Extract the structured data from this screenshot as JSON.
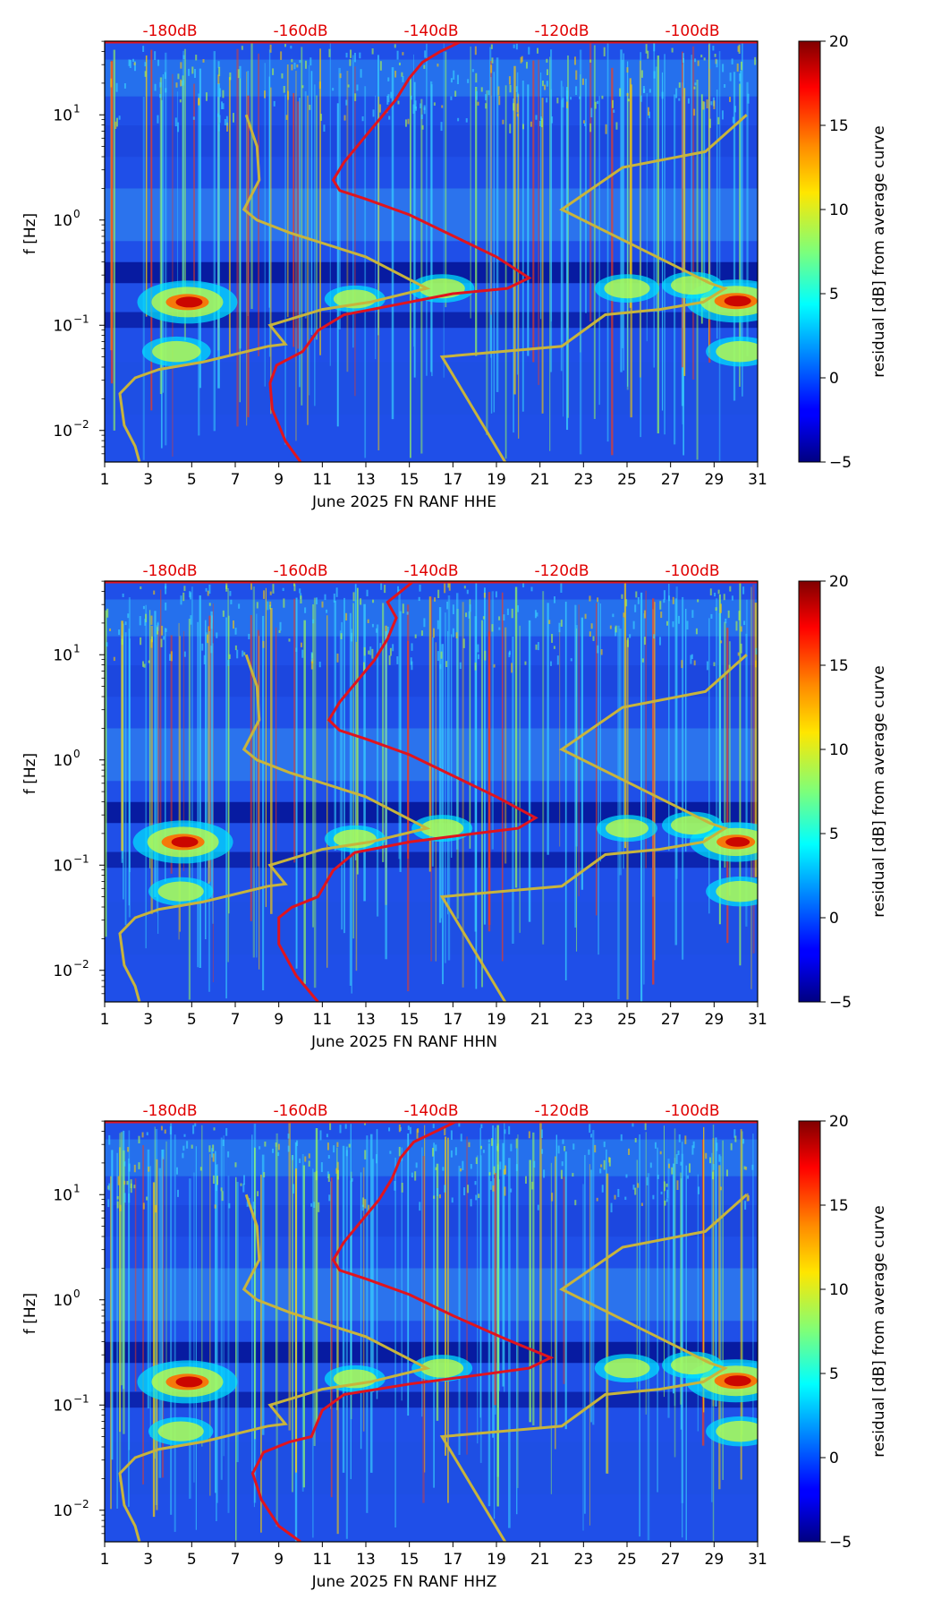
{
  "colors": {
    "ref_curve": "#e0141e",
    "noise_model": "#c8b43c",
    "db_axis": "#e00000"
  },
  "chart_data": [
    {
      "type": "heatmap",
      "channel": "HHE",
      "xlabel": "June 2025 FN RANF  HHE",
      "ylabel": "f [Hz]",
      "xlim": [
        1,
        31
      ],
      "ylim_log10": [
        -2.3,
        1.7
      ],
      "x_ticks": [
        1,
        3,
        5,
        7,
        9,
        11,
        13,
        15,
        17,
        19,
        21,
        23,
        25,
        27,
        29,
        31
      ],
      "y_ticks": [
        {
          "log10": -2,
          "label": "10",
          "exp": "−2"
        },
        {
          "log10": -1,
          "label": "10",
          "exp": "−1"
        },
        {
          "log10": 0,
          "label": "10",
          "exp": "0"
        },
        {
          "log10": 1,
          "label": "10",
          "exp": "1"
        }
      ],
      "db_ticks": [
        {
          "day": 4,
          "label": "-180dB"
        },
        {
          "day": 10,
          "label": "-160dB"
        },
        {
          "day": 16,
          "label": "-140dB"
        },
        {
          "day": 22,
          "label": "-120dB"
        },
        {
          "day": 28,
          "label": "-100dB"
        }
      ],
      "colorbar": {
        "label": "residual [dB] from average curve",
        "range": [
          -5,
          20
        ],
        "ticks": [
          20,
          15,
          10,
          5,
          0,
          -5
        ],
        "tick_labels": [
          "20",
          "15",
          "10",
          "5",
          "0",
          "−5"
        ]
      },
      "hot_spots": [
        {
          "day": 4.8,
          "log10f": -0.78,
          "strength": 1.0
        },
        {
          "day": 30.0,
          "log10f": -0.77,
          "strength": 1.0
        },
        {
          "day": 4.3,
          "log10f": -1.25,
          "strength": 0.6
        },
        {
          "day": 30.2,
          "log10f": -1.25,
          "strength": 0.6
        },
        {
          "day": 12.5,
          "log10f": -0.75,
          "strength": 0.5
        },
        {
          "day": 16.5,
          "log10f": -0.65,
          "strength": 0.55
        },
        {
          "day": 25.0,
          "log10f": -0.65,
          "strength": 0.55
        },
        {
          "day": 28.0,
          "log10f": -0.62,
          "strength": 0.5
        }
      ],
      "ref_curve": [
        {
          "day": 10.0,
          "log10f": -2.3
        },
        {
          "day": 9.3,
          "log10f": -2.1
        },
        {
          "day": 8.7,
          "log10f": -1.8
        },
        {
          "day": 8.6,
          "log10f": -1.55
        },
        {
          "day": 8.9,
          "log10f": -1.38
        },
        {
          "day": 10.1,
          "log10f": -1.25
        },
        {
          "day": 10.8,
          "log10f": -1.05
        },
        {
          "day": 12.0,
          "log10f": -0.9
        },
        {
          "day": 14.5,
          "log10f": -0.8
        },
        {
          "day": 17.0,
          "log10f": -0.7
        },
        {
          "day": 19.5,
          "log10f": -0.65
        },
        {
          "day": 20.5,
          "log10f": -0.55
        },
        {
          "day": 19.0,
          "log10f": -0.35
        },
        {
          "day": 17.0,
          "log10f": -0.15
        },
        {
          "day": 15.0,
          "log10f": 0.05
        },
        {
          "day": 13.0,
          "log10f": 0.2
        },
        {
          "day": 11.8,
          "log10f": 0.28
        },
        {
          "day": 11.5,
          "log10f": 0.38
        },
        {
          "day": 12.0,
          "log10f": 0.55
        },
        {
          "day": 12.8,
          "log10f": 0.75
        },
        {
          "day": 13.6,
          "log10f": 0.95
        },
        {
          "day": 14.4,
          "log10f": 1.15
        },
        {
          "day": 15.0,
          "log10f": 1.35
        },
        {
          "day": 15.6,
          "log10f": 1.5
        },
        {
          "day": 16.4,
          "log10f": 1.6
        },
        {
          "day": 17.4,
          "log10f": 1.7
        }
      ],
      "noise_low": [
        {
          "day": 2.6,
          "log10f": -2.3
        },
        {
          "day": 2.4,
          "log10f": -2.15
        },
        {
          "day": 1.9,
          "log10f": -1.95
        },
        {
          "day": 1.7,
          "log10f": -1.65
        },
        {
          "day": 2.4,
          "log10f": -1.5
        },
        {
          "day": 3.5,
          "log10f": -1.42
        },
        {
          "day": 5.5,
          "log10f": -1.35
        },
        {
          "day": 8.5,
          "log10f": -1.2
        },
        {
          "day": 9.3,
          "log10f": -1.18
        },
        {
          "day": 8.6,
          "log10f": -1.0
        },
        {
          "day": 11.0,
          "log10f": -0.85
        },
        {
          "day": 13.2,
          "log10f": -0.78
        },
        {
          "day": 15.8,
          "log10f": -0.65
        },
        {
          "day": 13.0,
          "log10f": -0.35
        },
        {
          "day": 9.5,
          "log10f": -0.12
        },
        {
          "day": 8.0,
          "log10f": 0.0
        },
        {
          "day": 7.4,
          "log10f": 0.1
        },
        {
          "day": 8.1,
          "log10f": 0.38
        },
        {
          "day": 8.0,
          "log10f": 0.7
        },
        {
          "day": 7.5,
          "log10f": 1.0
        }
      ],
      "noise_high": [
        {
          "day": 19.4,
          "log10f": -2.3
        },
        {
          "day": 16.5,
          "log10f": -1.3
        },
        {
          "day": 22.0,
          "log10f": -1.2
        },
        {
          "day": 24.0,
          "log10f": -0.9
        },
        {
          "day": 26.5,
          "log10f": -0.85
        },
        {
          "day": 28.5,
          "log10f": -0.78
        },
        {
          "day": 29.5,
          "log10f": -0.65
        },
        {
          "day": 28.8,
          "log10f": -0.6
        },
        {
          "day": 22.0,
          "log10f": 0.1
        },
        {
          "day": 24.8,
          "log10f": 0.5
        },
        {
          "day": 28.6,
          "log10f": 0.65
        },
        {
          "day": 30.5,
          "log10f": 1.0
        }
      ]
    },
    {
      "type": "heatmap",
      "channel": "HHN",
      "xlabel": "June 2025 FN RANF  HHN",
      "ylabel": "f [Hz]",
      "xlim": [
        1,
        31
      ],
      "ylim_log10": [
        -2.3,
        1.7
      ],
      "x_ticks": [
        1,
        3,
        5,
        7,
        9,
        11,
        13,
        15,
        17,
        19,
        21,
        23,
        25,
        27,
        29,
        31
      ],
      "y_ticks": [
        {
          "log10": -2,
          "label": "10",
          "exp": "−2"
        },
        {
          "log10": -1,
          "label": "10",
          "exp": "−1"
        },
        {
          "log10": 0,
          "label": "10",
          "exp": "0"
        },
        {
          "log10": 1,
          "label": "10",
          "exp": "1"
        }
      ],
      "db_ticks": [
        {
          "day": 4,
          "label": "-180dB"
        },
        {
          "day": 10,
          "label": "-160dB"
        },
        {
          "day": 16,
          "label": "-140dB"
        },
        {
          "day": 22,
          "label": "-120dB"
        },
        {
          "day": 28,
          "label": "-100dB"
        }
      ],
      "colorbar": {
        "label": "residual [dB] from average curve",
        "range": [
          -5,
          20
        ],
        "ticks": [
          20,
          15,
          10,
          5,
          0,
          -5
        ],
        "tick_labels": [
          "20",
          "15",
          "10",
          "5",
          "0",
          "−5"
        ]
      },
      "hot_spots": [
        {
          "day": 4.6,
          "log10f": -0.78,
          "strength": 1.0
        },
        {
          "day": 30.0,
          "log10f": -0.78,
          "strength": 0.9
        },
        {
          "day": 4.5,
          "log10f": -1.25,
          "strength": 0.55
        },
        {
          "day": 30.2,
          "log10f": -1.25,
          "strength": 0.6
        },
        {
          "day": 12.5,
          "log10f": -0.75,
          "strength": 0.5
        },
        {
          "day": 16.5,
          "log10f": -0.65,
          "strength": 0.5
        },
        {
          "day": 25.0,
          "log10f": -0.65,
          "strength": 0.5
        },
        {
          "day": 28.0,
          "log10f": -0.62,
          "strength": 0.5
        }
      ],
      "ref_curve": [
        {
          "day": 10.8,
          "log10f": -2.3
        },
        {
          "day": 9.8,
          "log10f": -2.05
        },
        {
          "day": 9.0,
          "log10f": -1.75
        },
        {
          "day": 9.0,
          "log10f": -1.5
        },
        {
          "day": 9.6,
          "log10f": -1.4
        },
        {
          "day": 10.8,
          "log10f": -1.3
        },
        {
          "day": 11.5,
          "log10f": -1.05
        },
        {
          "day": 12.5,
          "log10f": -0.88
        },
        {
          "day": 15.0,
          "log10f": -0.78
        },
        {
          "day": 18.0,
          "log10f": -0.7
        },
        {
          "day": 20.0,
          "log10f": -0.65
        },
        {
          "day": 20.8,
          "log10f": -0.55
        },
        {
          "day": 19.0,
          "log10f": -0.35
        },
        {
          "day": 17.0,
          "log10f": -0.15
        },
        {
          "day": 15.0,
          "log10f": 0.05
        },
        {
          "day": 13.0,
          "log10f": 0.2
        },
        {
          "day": 11.8,
          "log10f": 0.28
        },
        {
          "day": 11.3,
          "log10f": 0.38
        },
        {
          "day": 11.8,
          "log10f": 0.55
        },
        {
          "day": 12.6,
          "log10f": 0.75
        },
        {
          "day": 13.4,
          "log10f": 0.95
        },
        {
          "day": 14.0,
          "log10f": 1.15
        },
        {
          "day": 14.4,
          "log10f": 1.35
        },
        {
          "day": 14.0,
          "log10f": 1.5
        },
        {
          "day": 14.6,
          "log10f": 1.6
        },
        {
          "day": 15.2,
          "log10f": 1.7
        }
      ],
      "noise_low": [
        {
          "day": 2.6,
          "log10f": -2.3
        },
        {
          "day": 2.4,
          "log10f": -2.15
        },
        {
          "day": 1.9,
          "log10f": -1.95
        },
        {
          "day": 1.7,
          "log10f": -1.65
        },
        {
          "day": 2.4,
          "log10f": -1.5
        },
        {
          "day": 3.5,
          "log10f": -1.42
        },
        {
          "day": 5.5,
          "log10f": -1.35
        },
        {
          "day": 8.5,
          "log10f": -1.2
        },
        {
          "day": 9.3,
          "log10f": -1.18
        },
        {
          "day": 8.6,
          "log10f": -1.0
        },
        {
          "day": 11.0,
          "log10f": -0.85
        },
        {
          "day": 13.2,
          "log10f": -0.78
        },
        {
          "day": 15.8,
          "log10f": -0.65
        },
        {
          "day": 13.0,
          "log10f": -0.35
        },
        {
          "day": 9.5,
          "log10f": -0.12
        },
        {
          "day": 8.0,
          "log10f": 0.0
        },
        {
          "day": 7.4,
          "log10f": 0.1
        },
        {
          "day": 8.1,
          "log10f": 0.38
        },
        {
          "day": 8.0,
          "log10f": 0.7
        },
        {
          "day": 7.5,
          "log10f": 1.0
        }
      ],
      "noise_high": [
        {
          "day": 19.4,
          "log10f": -2.3
        },
        {
          "day": 16.5,
          "log10f": -1.3
        },
        {
          "day": 22.0,
          "log10f": -1.2
        },
        {
          "day": 24.0,
          "log10f": -0.9
        },
        {
          "day": 26.5,
          "log10f": -0.85
        },
        {
          "day": 28.5,
          "log10f": -0.78
        },
        {
          "day": 29.5,
          "log10f": -0.65
        },
        {
          "day": 28.8,
          "log10f": -0.6
        },
        {
          "day": 22.0,
          "log10f": 0.1
        },
        {
          "day": 24.8,
          "log10f": 0.5
        },
        {
          "day": 28.6,
          "log10f": 0.65
        },
        {
          "day": 30.5,
          "log10f": 1.0
        }
      ]
    },
    {
      "type": "heatmap",
      "channel": "HHZ",
      "xlabel": "June 2025 FN RANF  HHZ",
      "ylabel": "f [Hz]",
      "xlim": [
        1,
        31
      ],
      "ylim_log10": [
        -2.3,
        1.7
      ],
      "x_ticks": [
        1,
        3,
        5,
        7,
        9,
        11,
        13,
        15,
        17,
        19,
        21,
        23,
        25,
        27,
        29,
        31
      ],
      "y_ticks": [
        {
          "log10": -2,
          "label": "10",
          "exp": "−2"
        },
        {
          "log10": -1,
          "label": "10",
          "exp": "−1"
        },
        {
          "log10": 0,
          "label": "10",
          "exp": "0"
        },
        {
          "log10": 1,
          "label": "10",
          "exp": "1"
        }
      ],
      "db_ticks": [
        {
          "day": 4,
          "label": "-180dB"
        },
        {
          "day": 10,
          "label": "-160dB"
        },
        {
          "day": 16,
          "label": "-140dB"
        },
        {
          "day": 22,
          "label": "-120dB"
        },
        {
          "day": 28,
          "label": "-100dB"
        }
      ],
      "colorbar": {
        "label": "residual [dB] from average curve",
        "range": [
          -5,
          20
        ],
        "ticks": [
          20,
          15,
          10,
          5,
          0,
          -5
        ],
        "tick_labels": [
          "20",
          "15",
          "10",
          "5",
          "0",
          "−5"
        ]
      },
      "hot_spots": [
        {
          "day": 4.8,
          "log10f": -0.78,
          "strength": 1.0
        },
        {
          "day": 30.0,
          "log10f": -0.77,
          "strength": 1.0
        },
        {
          "day": 4.5,
          "log10f": -1.25,
          "strength": 0.55
        },
        {
          "day": 30.2,
          "log10f": -1.25,
          "strength": 0.6
        },
        {
          "day": 12.5,
          "log10f": -0.75,
          "strength": 0.5
        },
        {
          "day": 16.5,
          "log10f": -0.65,
          "strength": 0.5
        },
        {
          "day": 25.0,
          "log10f": -0.65,
          "strength": 0.55
        },
        {
          "day": 28.0,
          "log10f": -0.62,
          "strength": 0.5
        }
      ],
      "ref_curve": [
        {
          "day": 10.0,
          "log10f": -2.3
        },
        {
          "day": 9.0,
          "log10f": -2.15
        },
        {
          "day": 8.2,
          "log10f": -1.9
        },
        {
          "day": 7.8,
          "log10f": -1.65
        },
        {
          "day": 8.3,
          "log10f": -1.45
        },
        {
          "day": 9.5,
          "log10f": -1.35
        },
        {
          "day": 10.5,
          "log10f": -1.3
        },
        {
          "day": 11.0,
          "log10f": -1.05
        },
        {
          "day": 12.0,
          "log10f": -0.9
        },
        {
          "day": 15.0,
          "log10f": -0.8
        },
        {
          "day": 18.0,
          "log10f": -0.72
        },
        {
          "day": 20.5,
          "log10f": -0.65
        },
        {
          "day": 21.5,
          "log10f": -0.55
        },
        {
          "day": 19.5,
          "log10f": -0.38
        },
        {
          "day": 17.0,
          "log10f": -0.15
        },
        {
          "day": 15.0,
          "log10f": 0.05
        },
        {
          "day": 13.0,
          "log10f": 0.2
        },
        {
          "day": 11.8,
          "log10f": 0.28
        },
        {
          "day": 11.5,
          "log10f": 0.38
        },
        {
          "day": 12.0,
          "log10f": 0.55
        },
        {
          "day": 12.8,
          "log10f": 0.75
        },
        {
          "day": 13.6,
          "log10f": 0.95
        },
        {
          "day": 14.2,
          "log10f": 1.15
        },
        {
          "day": 14.6,
          "log10f": 1.35
        },
        {
          "day": 15.2,
          "log10f": 1.5
        },
        {
          "day": 16.2,
          "log10f": 1.6
        },
        {
          "day": 17.2,
          "log10f": 1.7
        }
      ],
      "noise_low": [
        {
          "day": 2.6,
          "log10f": -2.3
        },
        {
          "day": 2.4,
          "log10f": -2.15
        },
        {
          "day": 1.9,
          "log10f": -1.95
        },
        {
          "day": 1.7,
          "log10f": -1.65
        },
        {
          "day": 2.4,
          "log10f": -1.5
        },
        {
          "day": 3.5,
          "log10f": -1.42
        },
        {
          "day": 5.5,
          "log10f": -1.35
        },
        {
          "day": 8.5,
          "log10f": -1.2
        },
        {
          "day": 9.3,
          "log10f": -1.18
        },
        {
          "day": 8.6,
          "log10f": -1.0
        },
        {
          "day": 11.0,
          "log10f": -0.85
        },
        {
          "day": 13.2,
          "log10f": -0.78
        },
        {
          "day": 15.8,
          "log10f": -0.65
        },
        {
          "day": 13.0,
          "log10f": -0.35
        },
        {
          "day": 9.5,
          "log10f": -0.12
        },
        {
          "day": 8.0,
          "log10f": 0.0
        },
        {
          "day": 7.4,
          "log10f": 0.1
        },
        {
          "day": 8.1,
          "log10f": 0.38
        },
        {
          "day": 8.0,
          "log10f": 0.7
        },
        {
          "day": 7.5,
          "log10f": 1.0
        }
      ],
      "noise_high": [
        {
          "day": 19.4,
          "log10f": -2.3
        },
        {
          "day": 16.5,
          "log10f": -1.3
        },
        {
          "day": 22.0,
          "log10f": -1.2
        },
        {
          "day": 24.0,
          "log10f": -0.9
        },
        {
          "day": 26.5,
          "log10f": -0.85
        },
        {
          "day": 28.5,
          "log10f": -0.78
        },
        {
          "day": 29.5,
          "log10f": -0.65
        },
        {
          "day": 28.8,
          "log10f": -0.6
        },
        {
          "day": 22.0,
          "log10f": 0.1
        },
        {
          "day": 24.8,
          "log10f": 0.5
        },
        {
          "day": 28.6,
          "log10f": 0.65
        },
        {
          "day": 30.5,
          "log10f": 1.0
        }
      ]
    }
  ]
}
